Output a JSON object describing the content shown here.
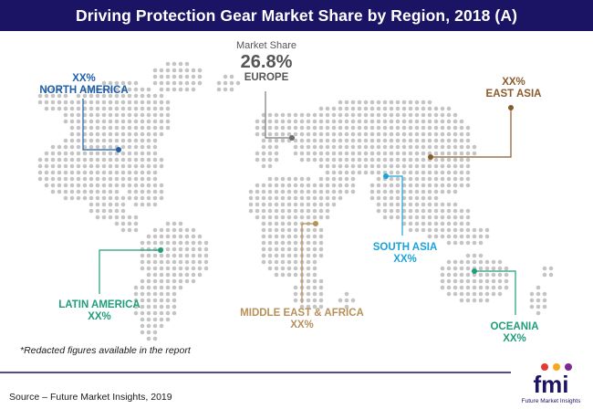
{
  "title": "Driving Protection Gear Market Share by Region, 2018 (A)",
  "europe": {
    "caption": "Market Share",
    "value": "26.8%",
    "name": "EUROPE"
  },
  "regions": {
    "north_america": {
      "value": "XX%",
      "name": "NORTH AMERICA",
      "color": "#1f5ea8"
    },
    "east_asia": {
      "value": "XX%",
      "name": "EAST ASIA",
      "color": "#8b5a2b"
    },
    "south_asia": {
      "name": "SOUTH ASIA",
      "value": "XX%",
      "color": "#1aa3d9"
    },
    "latin_america": {
      "name": "LATIN AMERICA",
      "value": "XX%",
      "color": "#1f9e7a"
    },
    "mea": {
      "name": "MIDDLE EAST & AFRICA",
      "value": "XX%",
      "color": "#b8905a"
    },
    "oceania": {
      "name": "OCEANIA",
      "value": "XX%",
      "color": "#1f9e7a"
    }
  },
  "colors": {
    "header_bg": "#1b1464",
    "dot": "#c4c4c4",
    "europe_line": "#7a7a7a"
  },
  "footnote": "*Redacted figures available in the report",
  "source": "Source – Future Market Insights, 2019",
  "logo": {
    "text": "fmi",
    "tagline": "Future Market Insights"
  }
}
